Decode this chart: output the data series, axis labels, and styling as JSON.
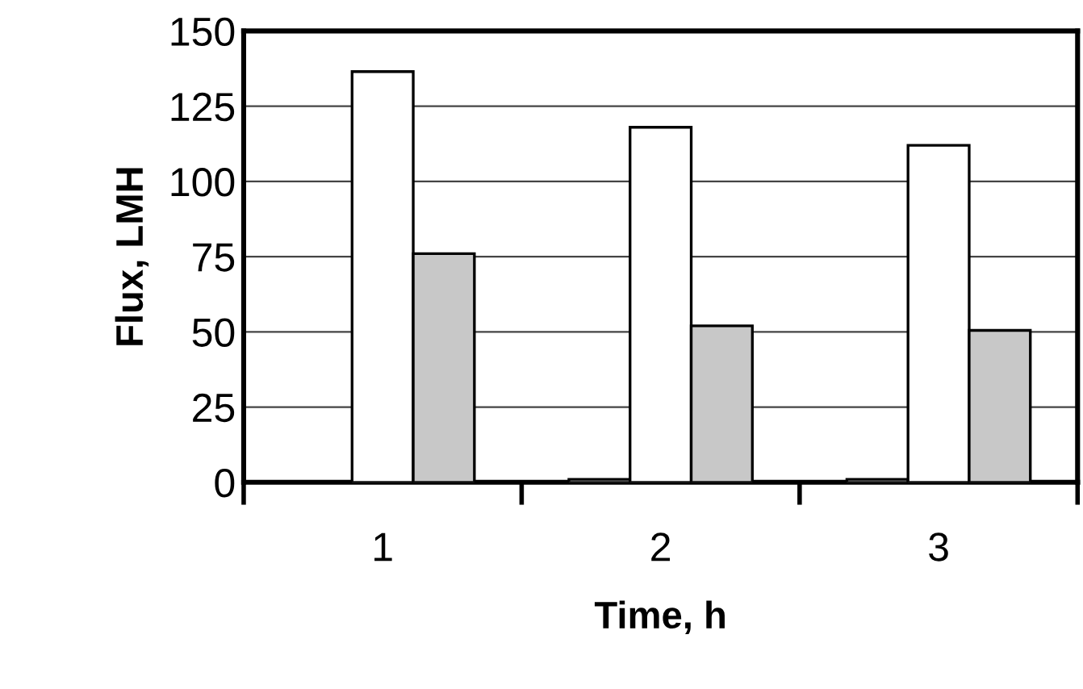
{
  "chart_data": {
    "type": "bar",
    "xlabel": "Time, h",
    "ylabel": "Flux, LMH",
    "categories": [
      "1",
      "2",
      "3"
    ],
    "series": [
      {
        "color": "#ffffff",
        "values": [
          null,
          1,
          1
        ]
      },
      {
        "color": "#ffffff",
        "values": [
          136.5,
          118,
          112
        ]
      },
      {
        "color": "#c8c8c8",
        "values": [
          76,
          52,
          50.5
        ]
      }
    ],
    "ylim": [
      0,
      150
    ],
    "yticks": [
      0,
      25,
      50,
      75,
      100,
      125,
      150
    ],
    "grid": "y",
    "legend": false
  }
}
